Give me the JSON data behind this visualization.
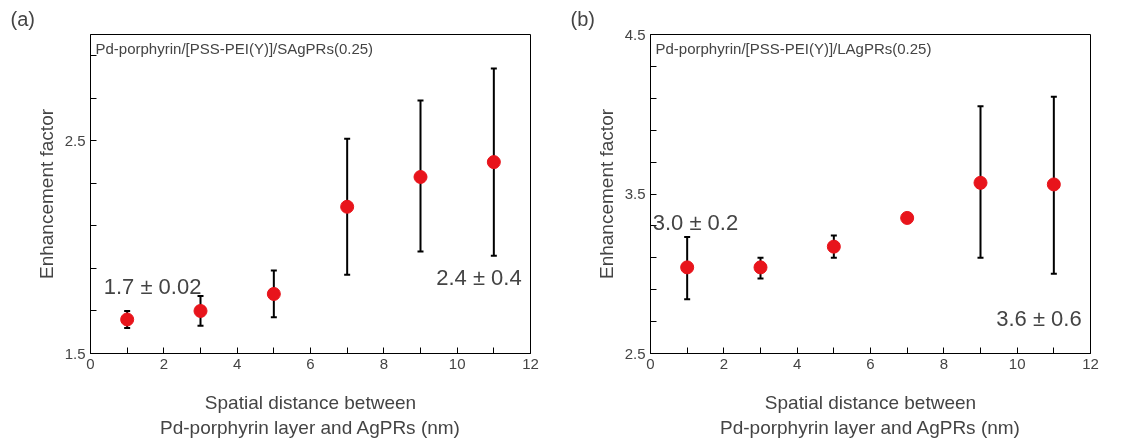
{
  "chart_data": [
    {
      "type": "scatter",
      "title": "(a)",
      "xlabel": "Spatial distance between\nPd-porphyrin layer and AgPRs (nm)",
      "ylabel": "Enhancement factor",
      "annotations": [
        "Pd-porphyrin/[PSS-PEI(Y)]/SAgPRs(0.25)",
        "1.7 ± 0.02",
        "2.4 ± 0.4"
      ],
      "x": [
        1,
        3,
        5,
        7,
        9,
        11
      ],
      "series": [
        {
          "color": "#e8141b",
          "values": [
            1.66,
            1.7,
            1.78,
            2.19,
            2.33,
            2.4
          ],
          "errors": [
            [
              1.62,
              1.7
            ],
            [
              1.63,
              1.77
            ],
            [
              1.67,
              1.89
            ],
            [
              1.87,
              2.51
            ],
            [
              1.98,
              2.69
            ],
            [
              1.96,
              2.84
            ]
          ]
        }
      ],
      "xlim": [
        0,
        12
      ],
      "ylim": [
        1.5,
        3.0
      ],
      "xticks": [
        0,
        {
          "value": 1,
          "label": null
        },
        2,
        {
          "value": 3,
          "label": null
        },
        4,
        {
          "value": 5,
          "label": null
        },
        6,
        {
          "value": 7,
          "label": null
        },
        8,
        {
          "value": 9,
          "label": null
        },
        10,
        {
          "value": 11,
          "label": null
        },
        12
      ],
      "yticks": [
        1.5,
        {
          "value": 1.7,
          "label": null
        },
        {
          "value": 1.9,
          "label": null
        },
        {
          "value": 2.1,
          "label": null
        },
        {
          "value": 2.3,
          "label": null
        },
        2.5,
        {
          "value": 2.7,
          "label": null
        },
        {
          "value": 2.9,
          "label": null
        }
      ],
      "grid": false,
      "marker": "circle"
    },
    {
      "type": "scatter",
      "title": "(b)",
      "xlabel": "Spatial distance between\nPd-porphyrin layer and AgPRs (nm)",
      "ylabel": "Enhancement factor",
      "annotations": [
        "Pd-porphyrin/[PSS-PEI(Y)]/LAgPRs(0.25)",
        "3.0 ± 0.2",
        "3.6 ± 0.6"
      ],
      "x": [
        1,
        3,
        5,
        7,
        9,
        11
      ],
      "series": [
        {
          "color": "#e8141b",
          "values": [
            3.04,
            3.04,
            3.17,
            3.35,
            3.57,
            3.56
          ],
          "errors": [
            [
              2.84,
              3.23
            ],
            [
              2.97,
              3.1
            ],
            [
              3.1,
              3.24
            ],
            null,
            [
              3.1,
              4.05
            ],
            [
              3.0,
              4.11
            ]
          ]
        }
      ],
      "xlim": [
        0,
        12
      ],
      "ylim": [
        2.5,
        4.5
      ],
      "xticks": [
        0,
        {
          "value": 1,
          "label": null
        },
        2,
        {
          "value": 3,
          "label": null
        },
        4,
        {
          "value": 5,
          "label": null
        },
        6,
        {
          "value": 7,
          "label": null
        },
        8,
        {
          "value": 9,
          "label": null
        },
        10,
        {
          "value": 11,
          "label": null
        },
        12
      ],
      "yticks": [
        2.5,
        {
          "value": 2.7,
          "label": null
        },
        {
          "value": 2.9,
          "label": null
        },
        {
          "value": 3.1,
          "label": null
        },
        {
          "value": 3.3,
          "label": null
        },
        3.5,
        {
          "value": 3.7,
          "label": null
        },
        {
          "value": 3.9,
          "label": null
        },
        {
          "value": 4.1,
          "label": null
        },
        {
          "value": 4.3,
          "label": null
        },
        4.5
      ],
      "grid": false,
      "marker": "circle"
    }
  ]
}
